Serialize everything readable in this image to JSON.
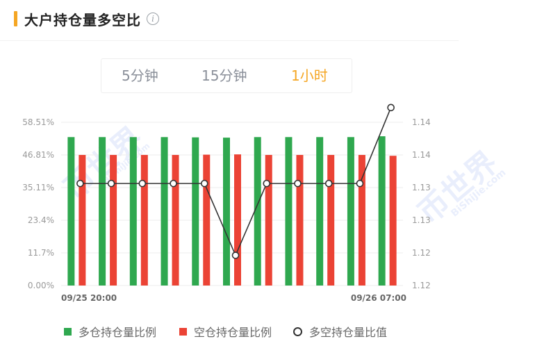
{
  "header": {
    "title": "大户持仓量多空比",
    "info_icon": "info-icon"
  },
  "tabs": [
    {
      "label": "5分钟",
      "active": false
    },
    {
      "label": "15分钟",
      "active": false
    },
    {
      "label": "1小时",
      "active": true
    }
  ],
  "colors": {
    "long": "#2fa84f",
    "short": "#eb4335",
    "line": "#333333",
    "accent": "#f5a623"
  },
  "watermark": {
    "brand": "币世界",
    "domain": "BiShiJie.com"
  },
  "chart_data": {
    "type": "bar",
    "left_axis": {
      "ticks": [
        "58.51%",
        "46.81%",
        "35.11%",
        "23.4%",
        "11.7%",
        "0.00%"
      ],
      "range": [
        0,
        58.51
      ]
    },
    "right_axis": {
      "ticks": [
        "1.14",
        "1.14",
        "1.13",
        "1.13",
        "1.12",
        "1.12"
      ],
      "range": [
        1.12,
        1.14
      ]
    },
    "x_tick_labels": [
      "09/25 20:00",
      "09/26 07:00"
    ],
    "series": [
      {
        "name": "多仓持仓量比例",
        "type": "bar",
        "axis": "left",
        "values": [
          53.2,
          53.2,
          53.2,
          53.2,
          53.1,
          53.0,
          53.2,
          53.2,
          53.2,
          53.2,
          53.5
        ]
      },
      {
        "name": "空仓持仓量比例",
        "type": "bar",
        "axis": "left",
        "values": [
          46.8,
          46.8,
          46.8,
          46.8,
          46.9,
          47.0,
          46.8,
          46.8,
          46.8,
          46.8,
          46.5
        ]
      },
      {
        "name": "多空持仓量比值",
        "type": "line",
        "axis": "right",
        "values": [
          1.1325,
          1.1325,
          1.1325,
          1.1325,
          1.1325,
          1.1237,
          1.1325,
          1.1325,
          1.1325,
          1.1325,
          1.1418
        ]
      }
    ],
    "grid": true,
    "legend_position": "bottom"
  }
}
